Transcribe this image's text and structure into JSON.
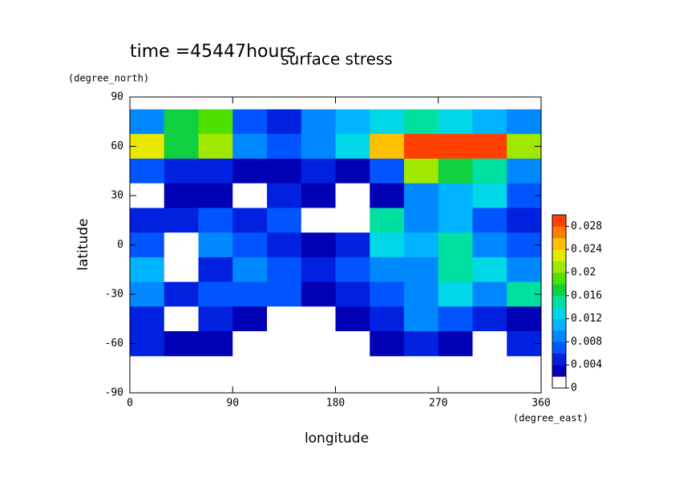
{
  "chart_data": {
    "type": "heatmap",
    "annotation": "time =45447hours",
    "title": "surface stress",
    "x_label": "longitude",
    "x_unit": "(degree_east)",
    "y_label": "latitude",
    "y_unit": "(degree_north)",
    "xlim": [
      0,
      360
    ],
    "ylim": [
      -90,
      90
    ],
    "xticks": [
      0,
      90,
      180,
      270,
      360
    ],
    "yticks": [
      -90,
      -60,
      -30,
      0,
      30,
      60,
      90
    ],
    "x": [
      15,
      45,
      75,
      105,
      135,
      165,
      195,
      225,
      255,
      285,
      315,
      345
    ],
    "y": [
      75,
      60,
      45,
      30,
      15,
      0,
      -15,
      -30,
      -45,
      -60
    ],
    "z": [
      [
        0.008,
        0.016,
        0.018,
        0.006,
        0.005,
        0.008,
        0.01,
        0.012,
        0.014,
        0.012,
        0.01,
        0.008
      ],
      [
        0.022,
        0.016,
        0.02,
        0.008,
        0.006,
        0.008,
        0.012,
        0.024,
        0.03,
        0.03,
        0.028,
        0.02
      ],
      [
        0.006,
        0.004,
        0.004,
        0.002,
        0.003,
        0.004,
        0.003,
        0.006,
        0.02,
        0.016,
        0.014,
        0.008
      ],
      [
        0.001,
        0.003,
        0.002,
        0,
        0.004,
        0.003,
        0,
        0.003,
        0.008,
        0.01,
        0.012,
        0.006
      ],
      [
        0.004,
        0.005,
        0.006,
        0.004,
        0.006,
        0,
        0.001,
        0.014,
        0.008,
        0.01,
        0.006,
        0.004
      ],
      [
        0.006,
        0,
        0.008,
        0.006,
        0.005,
        0.003,
        0.004,
        0.012,
        0.01,
        0.014,
        0.008,
        0.006
      ],
      [
        0.01,
        0.001,
        0.004,
        0.008,
        0.006,
        0.004,
        0.006,
        0.008,
        0.008,
        0.014,
        0.012,
        0.008
      ],
      [
        0.008,
        0.004,
        0.006,
        0.006,
        0.006,
        0.003,
        0.004,
        0.006,
        0.008,
        0.012,
        0.008,
        0.014
      ],
      [
        0.004,
        0,
        0.004,
        0.002,
        0,
        0,
        0.002,
        0.004,
        0.008,
        0.006,
        0.004,
        0.003
      ],
      [
        0.004,
        0.002,
        0.003,
        0,
        0,
        0,
        0,
        0.003,
        0.004,
        0.002,
        0.001,
        0.004
      ]
    ],
    "levels": [
      0,
      0.002,
      0.004,
      0.006,
      0.008,
      0.01,
      0.012,
      0.014,
      0.016,
      0.018,
      0.02,
      0.022,
      0.024,
      0.026,
      0.028,
      0.03
    ],
    "colors": [
      "#ffffff",
      "#0000b4",
      "#0022e0",
      "#0055ff",
      "#0088ff",
      "#00b4ff",
      "#00d8e8",
      "#00e0a0",
      "#10d040",
      "#50e000",
      "#a0e800",
      "#e8e800",
      "#ffc000",
      "#ff8000",
      "#ff4000"
    ],
    "clim": [
      0,
      0.03
    ],
    "cticks": [
      0,
      0.004,
      0.008,
      0.012,
      0.016,
      0.02,
      0.024,
      0.028
    ]
  }
}
